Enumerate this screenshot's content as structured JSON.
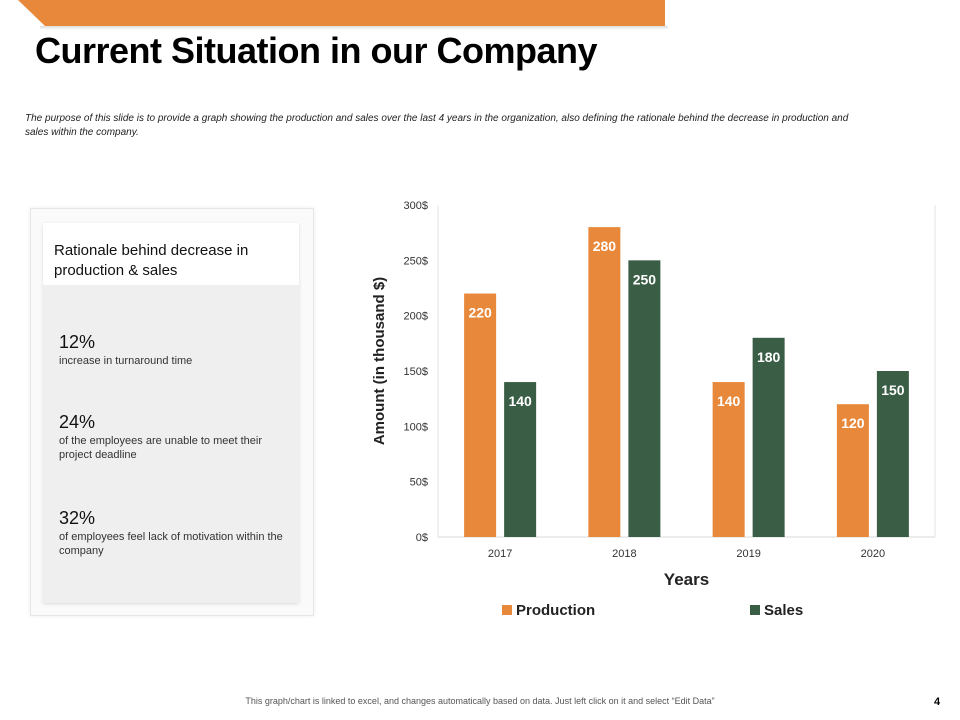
{
  "slide": {
    "title": "Current Situation in our Company",
    "intro": "The purpose of this slide is to provide a graph showing the production and sales over the last 4 years in the organization, also defining the rationale behind the decrease in production and sales within the company.",
    "footnote": "This graph/chart is linked to excel, and changes automatically based on data. Just left click on it and select “Edit Data”",
    "page_number": "4",
    "accent_color": "#E8883A"
  },
  "rationale": {
    "title": "Rationale behind decrease in production & sales",
    "stats": [
      {
        "value": "12%",
        "desc": "increase in turnaround time"
      },
      {
        "value": "24%",
        "desc": "of the employees are unable to meet their project deadline"
      },
      {
        "value": "32%",
        "desc": "of employees feel lack of motivation within the company"
      }
    ]
  },
  "chart_data": {
    "type": "bar",
    "title": "",
    "categories": [
      "2017",
      "2018",
      "2019",
      "2020"
    ],
    "series": [
      {
        "name": "Production",
        "values": [
          220,
          280,
          140,
          120
        ],
        "color": "#E8883A"
      },
      {
        "name": "Sales",
        "values": [
          140,
          250,
          180,
          150
        ],
        "color": "#3A5E45"
      }
    ],
    "ylim": [
      0,
      300
    ],
    "yticks": [
      "0$",
      "50$",
      "100$",
      "150$",
      "200$",
      "250$",
      "300$"
    ],
    "xlabel": "Years",
    "ylabel": "Amount (in thousand $)",
    "legend_position": "bottom",
    "grid": false
  }
}
